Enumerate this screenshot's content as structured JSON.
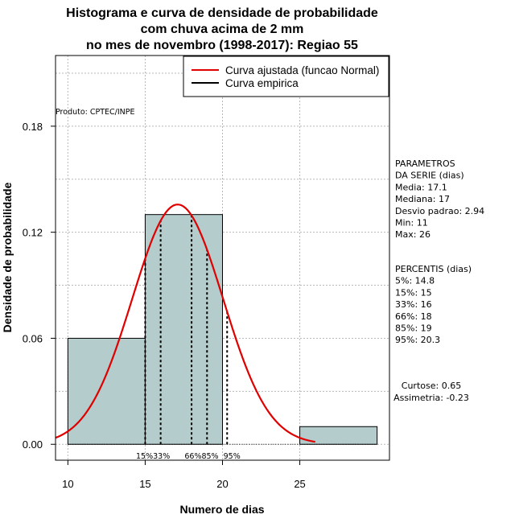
{
  "chart_data": {
    "type": "bar",
    "title_lines": [
      "Histograma e curva de densidade de probabilidade",
      "com chuva acima de 2 mm",
      "no mes de novembro (1998-2017): Regiao 55"
    ],
    "xlabel": "Numero de dias",
    "ylabel": "Densidade de probabilidade",
    "xlim": [
      9.2,
      30.8
    ],
    "ylim": [
      -0.009,
      0.22
    ],
    "x_ticks": [
      10,
      15,
      20,
      25
    ],
    "y_ticks": [
      0.0,
      0.06,
      0.12,
      0.18
    ],
    "x_tick_labels": [
      "10",
      "15",
      "20",
      "25"
    ],
    "y_tick_labels": [
      "0.00",
      "0.06",
      "0.12",
      "0.18"
    ],
    "grid": true,
    "bins": [
      {
        "from": 10,
        "to": 15,
        "density": 0.06
      },
      {
        "from": 15,
        "to": 20,
        "density": 0.13
      },
      {
        "from": 20,
        "to": 25,
        "density": 0.0
      },
      {
        "from": 25,
        "to": 30,
        "density": 0.01
      }
    ],
    "bar_color": "#b4cccc",
    "series": [
      {
        "name": "Curva ajustada (funcao Normal)",
        "type": "normal",
        "mean": 17.1,
        "sd": 2.94,
        "x_from": 9.2,
        "x_to": 26,
        "color": "#e00000"
      },
      {
        "name": "Curva empirica",
        "type": "line",
        "color": "#000000",
        "x": [],
        "y": []
      }
    ],
    "percentile_lines": [
      {
        "label": "15%",
        "x": 15
      },
      {
        "label": "33%",
        "x": 16
      },
      {
        "label": "66%",
        "x": 18
      },
      {
        "label": "85%",
        "x": 19
      },
      {
        "label": "95%",
        "x": 20.3
      }
    ],
    "percentile_caption": "15%33%      66%85%  95%",
    "legend_position": "top-right",
    "credit": "Produto: CPTEC/INPE",
    "side_panel": {
      "params_lines": [
        "PARAMETROS",
        "DA SERIE (dias)",
        "   Media: 17.1",
        "   Mediana: 17",
        "   Desvio padrao: 2.94",
        "   Min: 11",
        "   Max: 26"
      ],
      "percentis_lines": [
        "PERCENTIS (dias)",
        "   5%: 14.8",
        "   15%: 15",
        "   33%: 16",
        "   66%: 18",
        "   85%: 19",
        "   95%: 20.3"
      ],
      "shape_lines": [
        "Curtose: 0.65",
        "Assimetria: -0.23"
      ]
    }
  }
}
